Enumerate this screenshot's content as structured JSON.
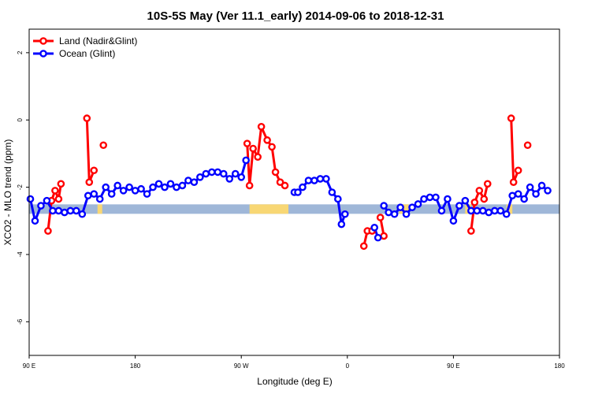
{
  "chart_data": {
    "type": "line",
    "title": "10S-5S May (Ver 11.1_early)   2014-09-06 to 2018-12-31",
    "xlabel": "Longitude (deg E)",
    "ylabel": "XCO2 - MLO trend (ppm)",
    "xlim": [
      90,
      540
    ],
    "ylim": [
      -7,
      2.7
    ],
    "x_ticks": [
      {
        "value": 90,
        "label": "90 E"
      },
      {
        "value": 180,
        "label": "180"
      },
      {
        "value": 270,
        "label": "90 W"
      },
      {
        "value": 360,
        "label": "0"
      },
      {
        "value": 450,
        "label": "90 E"
      },
      {
        "value": 540,
        "label": "180"
      }
    ],
    "y_ticks": [
      {
        "value": 2,
        "label": "2"
      },
      {
        "value": 0,
        "label": "0"
      },
      {
        "value": -2,
        "label": "-2"
      },
      {
        "value": -4,
        "label": "-4"
      },
      {
        "value": -6,
        "label": "-6"
      }
    ],
    "legend_position": "top-left",
    "surface_band": {
      "y": -2.65,
      "colors": {
        "ocean": "#9fb7d8",
        "land": "#f8d774"
      },
      "land_segments": [
        [
          148,
          152
        ],
        [
          277,
          310
        ],
        [
          404,
          412
        ],
        [
          460,
          465
        ],
        [
          495,
          500
        ]
      ]
    },
    "series": [
      {
        "name": "Land (Nadir&Glint)",
        "color": "#ff0000",
        "points": [
          [
            106,
            -3.3
          ],
          [
            109,
            -2.4
          ],
          [
            112,
            -2.1
          ],
          [
            115,
            -2.35
          ],
          [
            117,
            -1.9
          ],
          [
            null,
            null
          ],
          [
            139,
            0.05
          ],
          [
            141,
            -1.85
          ],
          [
            145,
            -1.5
          ],
          [
            null,
            null
          ],
          [
            153,
            -0.75
          ],
          [
            null,
            null
          ],
          [
            275,
            -0.7
          ],
          [
            277,
            -1.95
          ],
          [
            280,
            -0.85
          ],
          [
            284,
            -1.1
          ],
          [
            287,
            -0.2
          ],
          [
            292,
            -0.6
          ],
          [
            296,
            -0.8
          ],
          [
            299,
            -1.55
          ],
          [
            303,
            -1.85
          ],
          [
            307,
            -1.95
          ],
          [
            null,
            null
          ],
          [
            374,
            -3.75
          ],
          [
            377,
            -3.3
          ],
          [
            381,
            -3.3
          ],
          [
            null,
            null
          ],
          [
            388,
            -2.9
          ],
          [
            391,
            -3.45
          ],
          [
            null,
            null
          ],
          [
            465,
            -3.3
          ],
          [
            468,
            -2.45
          ],
          [
            472,
            -2.1
          ],
          [
            476,
            -2.35
          ],
          [
            479,
            -1.9
          ],
          [
            null,
            null
          ],
          [
            499,
            0.05
          ],
          [
            501,
            -1.85
          ],
          [
            505,
            -1.5
          ],
          [
            null,
            null
          ],
          [
            513,
            -0.75
          ]
        ]
      },
      {
        "name": "Ocean (Glint)",
        "color": "#0000ff",
        "points": [
          [
            91,
            -2.35
          ],
          [
            95,
            -3.0
          ],
          [
            100,
            -2.55
          ],
          [
            105,
            -2.4
          ],
          [
            110,
            -2.7
          ],
          [
            115,
            -2.7
          ],
          [
            120,
            -2.75
          ],
          [
            125,
            -2.7
          ],
          [
            130,
            -2.7
          ],
          [
            135,
            -2.8
          ],
          [
            140,
            -2.25
          ],
          [
            145,
            -2.2
          ],
          [
            150,
            -2.35
          ],
          [
            155,
            -2.0
          ],
          [
            160,
            -2.2
          ],
          [
            165,
            -1.95
          ],
          [
            170,
            -2.1
          ],
          [
            175,
            -2.0
          ],
          [
            180,
            -2.1
          ],
          [
            185,
            -2.05
          ],
          [
            190,
            -2.2
          ],
          [
            195,
            -2.0
          ],
          [
            200,
            -1.9
          ],
          [
            205,
            -2.0
          ],
          [
            210,
            -1.9
          ],
          [
            215,
            -2.0
          ],
          [
            220,
            -1.95
          ],
          [
            225,
            -1.8
          ],
          [
            230,
            -1.85
          ],
          [
            235,
            -1.7
          ],
          [
            240,
            -1.6
          ],
          [
            245,
            -1.55
          ],
          [
            250,
            -1.55
          ],
          [
            255,
            -1.6
          ],
          [
            260,
            -1.75
          ],
          [
            265,
            -1.6
          ],
          [
            270,
            -1.7
          ],
          [
            274,
            -1.2
          ],
          [
            null,
            null
          ],
          [
            315,
            -2.15
          ],
          [
            318,
            -2.15
          ],
          [
            322,
            -2.0
          ],
          [
            327,
            -1.8
          ],
          [
            332,
            -1.8
          ],
          [
            337,
            -1.75
          ],
          [
            342,
            -1.75
          ],
          [
            347,
            -2.15
          ],
          [
            352,
            -2.35
          ],
          [
            355,
            -3.1
          ],
          [
            358,
            -2.8
          ],
          [
            null,
            null
          ],
          [
            383,
            -3.2
          ],
          [
            386,
            -3.5
          ],
          [
            null,
            null
          ],
          [
            391,
            -2.55
          ],
          [
            395,
            -2.75
          ],
          [
            400,
            -2.8
          ],
          [
            405,
            -2.6
          ],
          [
            410,
            -2.8
          ],
          [
            415,
            -2.6
          ],
          [
            420,
            -2.5
          ],
          [
            425,
            -2.35
          ],
          [
            430,
            -2.3
          ],
          [
            435,
            -2.3
          ],
          [
            440,
            -2.7
          ],
          [
            445,
            -2.35
          ],
          [
            450,
            -3.0
          ],
          [
            455,
            -2.55
          ],
          [
            460,
            -2.4
          ],
          [
            465,
            -2.7
          ],
          [
            470,
            -2.7
          ],
          [
            475,
            -2.7
          ],
          [
            480,
            -2.75
          ],
          [
            485,
            -2.7
          ],
          [
            490,
            -2.7
          ],
          [
            495,
            -2.8
          ],
          [
            500,
            -2.25
          ],
          [
            505,
            -2.2
          ],
          [
            510,
            -2.35
          ],
          [
            515,
            -2.0
          ],
          [
            520,
            -2.2
          ],
          [
            525,
            -1.95
          ],
          [
            530,
            -2.1
          ]
        ]
      }
    ]
  }
}
